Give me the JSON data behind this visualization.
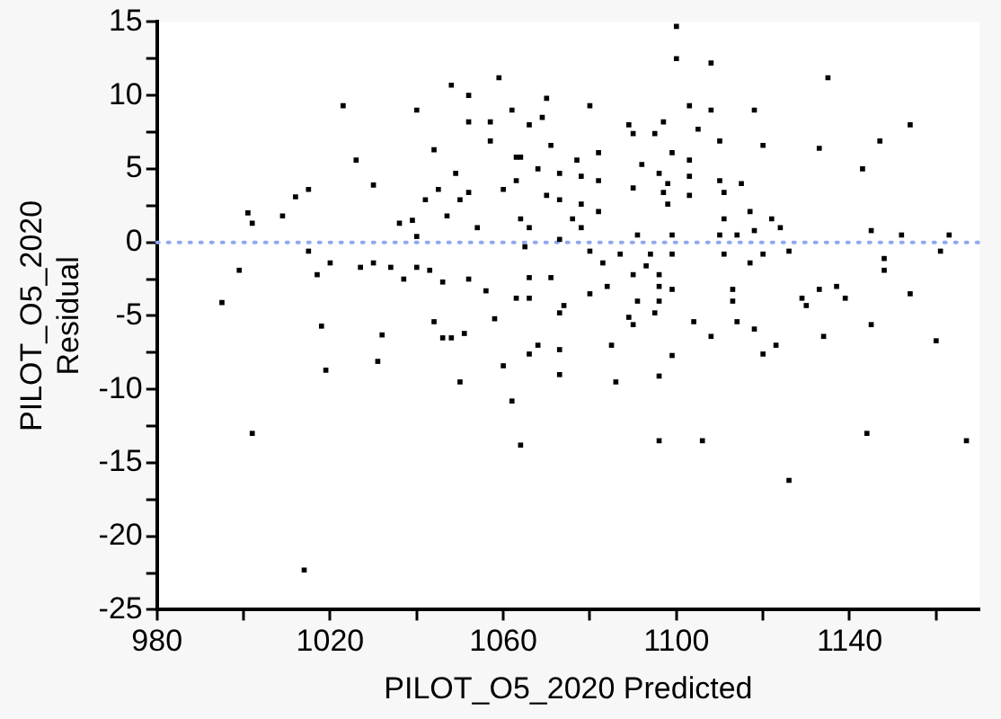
{
  "chart_data": {
    "type": "scatter",
    "xlabel": "PILOT_O5_2020 Predicted",
    "ylabel": "PILOT_O5_2020 Residual",
    "xlim": [
      980,
      1170
    ],
    "ylim": [
      -25,
      15
    ],
    "xticks": [
      980,
      {
        "value": 1000,
        "label": null
      },
      1020,
      {
        "value": 1040,
        "label": null
      },
      1060,
      {
        "value": 1080,
        "label": null
      },
      1100,
      {
        "value": 1120,
        "label": null
      },
      1140,
      {
        "value": 1160,
        "label": null
      }
    ],
    "yticks": [
      -25,
      {
        "value": -22.5,
        "label": null
      },
      -20,
      {
        "value": -17.5,
        "label": null
      },
      -15,
      {
        "value": -12.5,
        "label": null
      },
      -10,
      {
        "value": -7.5,
        "label": null
      },
      -5,
      {
        "value": -2.5,
        "label": null
      },
      0,
      {
        "value": 2.5,
        "label": null
      },
      5,
      {
        "value": 7.5,
        "label": null
      },
      10,
      {
        "value": 12.5,
        "label": null
      },
      15
    ],
    "grid": false,
    "legend": false,
    "marker": "square",
    "ref_lines": [
      {
        "axis": "y",
        "value": 0,
        "color": "#8fa8f0",
        "line_style": "dotted"
      }
    ],
    "series": [
      {
        "color": "#000000",
        "x": [
          995,
          999,
          1001,
          1002,
          1009,
          1012,
          1015,
          1015,
          1017,
          1018,
          1020,
          1023,
          1026,
          1027,
          1030,
          1030,
          1032,
          1034,
          1036,
          1037,
          1039,
          1040,
          1040,
          1040,
          1042,
          1043,
          1044,
          1044,
          1045,
          1046,
          1046,
          1047,
          1048,
          1049,
          1050,
          1051,
          1052,
          1052,
          1052,
          1052,
          1054,
          1056,
          1057,
          1057,
          1058,
          1059,
          1060,
          1062,
          1063,
          1063,
          1100,
          1100,
          1108,
          1135,
          1070,
          1080,
          1103,
          1108,
          1118,
          1154,
          1069,
          1066,
          1089,
          1097,
          1090,
          1095,
          1105,
          1147,
          1110,
          1120,
          1133,
          1071,
          1082,
          1064,
          1077,
          1092,
          1099,
          1103,
          1143,
          1068,
          1073,
          1078,
          1082,
          1096,
          1103,
          1110,
          1115,
          1063,
          1090,
          1098,
          1097,
          1111,
          1070,
          1073,
          1078,
          1082,
          1103,
          1098,
          1117,
          1076,
          1064,
          1111,
          1122,
          1124,
          1066,
          1078,
          1114,
          1118,
          1145,
          1152,
          1163,
          1091,
          1099,
          1110,
          1073,
          1065,
          1080,
          1087,
          1094,
          1099,
          1111,
          1126,
          1120,
          1161,
          1148,
          1083,
          1093,
          1117,
          1148,
          1096,
          1090,
          1066,
          1071,
          1084,
          1096,
          1099,
          1113,
          1133,
          1137,
          1154,
          1080,
          1139,
          1066,
          1113,
          1129,
          1091,
          1096,
          1130,
          1074,
          1073,
          1089,
          1095,
          1104,
          1114,
          1145,
          1090,
          1118,
          1108,
          1134,
          1160,
          1123,
          1085,
          1068,
          1073,
          1120,
          1099,
          1066,
          1073,
          1086,
          1096,
          1062,
          1064,
          1096,
          1106,
          1126,
          1144,
          1167,
          1002,
          1014,
          1019,
          1031,
          1048,
          1050,
          1060
        ],
        "values": [
          -4.1,
          -1.9,
          2.0,
          1.3,
          1.8,
          3.1,
          3.6,
          -0.6,
          -2.2,
          -5.7,
          -1.4,
          9.3,
          5.6,
          -1.7,
          3.9,
          -1.4,
          -6.3,
          -1.7,
          1.3,
          -2.5,
          1.5,
          9.0,
          -1.7,
          0.4,
          2.9,
          -1.9,
          6.3,
          -5.4,
          3.6,
          -2.7,
          -6.5,
          1.8,
          10.7,
          4.7,
          2.9,
          -6.2,
          10.0,
          8.2,
          -2.5,
          3.4,
          1.0,
          -3.3,
          6.9,
          8.2,
          -5.2,
          11.2,
          3.6,
          9.0,
          -3.8,
          5.8,
          14.7,
          12.5,
          12.2,
          11.2,
          9.8,
          9.3,
          9.3,
          9.0,
          9.0,
          8.0,
          8.5,
          8.0,
          8.0,
          8.2,
          7.4,
          7.4,
          7.7,
          6.9,
          6.9,
          6.6,
          6.4,
          6.6,
          6.1,
          5.8,
          5.6,
          5.3,
          6.1,
          5.6,
          5.0,
          5.0,
          4.7,
          4.5,
          4.2,
          4.7,
          4.5,
          4.2,
          4.0,
          4.2,
          3.7,
          4.0,
          3.4,
          3.4,
          3.2,
          2.9,
          2.6,
          2.1,
          3.2,
          2.6,
          2.1,
          1.6,
          1.6,
          1.6,
          1.6,
          1.0,
          1.0,
          1.0,
          0.5,
          0.8,
          0.8,
          0.5,
          0.5,
          0.5,
          0.5,
          0.5,
          0.2,
          -0.3,
          -0.6,
          -0.8,
          -0.8,
          -0.8,
          -0.8,
          -0.6,
          -0.8,
          -0.6,
          -1.1,
          -1.4,
          -1.6,
          -1.4,
          -1.9,
          -2.2,
          -2.2,
          -2.4,
          -2.4,
          -3.0,
          -3.0,
          -3.2,
          -3.2,
          -3.2,
          -3.0,
          -3.5,
          -3.5,
          -3.8,
          -3.8,
          -4.0,
          -3.8,
          -4.0,
          -4.0,
          -4.3,
          -4.3,
          -4.8,
          -5.1,
          -4.8,
          -5.4,
          -5.4,
          -5.6,
          -5.6,
          -5.9,
          -6.4,
          -6.4,
          -6.7,
          -7.0,
          -7.0,
          -7.0,
          -7.3,
          -7.6,
          -7.7,
          -7.6,
          -9.0,
          -9.5,
          -9.1,
          -10.8,
          -13.8,
          -13.5,
          -13.5,
          -16.2,
          -13.0,
          -13.5,
          -13.0,
          -22.3,
          -8.7,
          -8.1,
          -6.5,
          -9.5,
          -8.4
        ]
      }
    ]
  }
}
